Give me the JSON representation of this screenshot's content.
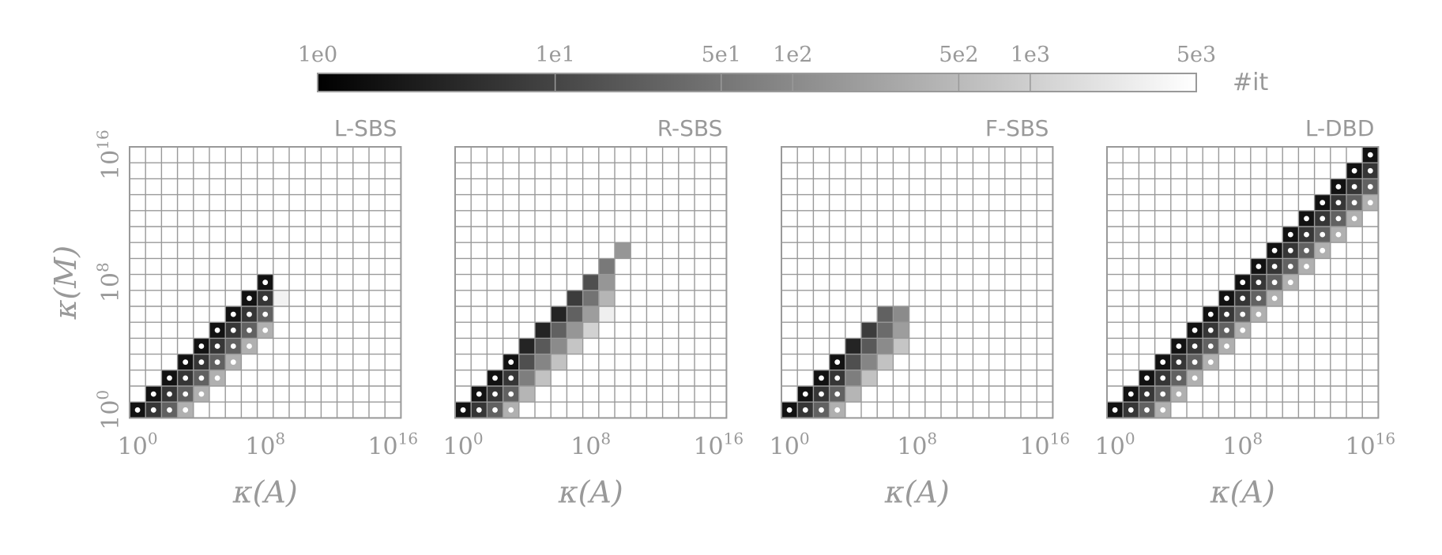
{
  "colorbar": {
    "label": "#it",
    "ticks": [
      "1e0",
      "1e1",
      "5e1",
      "1e2",
      "5e2",
      "1e3",
      "5e3"
    ]
  },
  "chart_data": [
    {
      "type": "heatmap",
      "title": "L-SBS",
      "xlabel": "κ(A)",
      "ylabel": "κ(M)",
      "xticks": [
        "10^0",
        "10^8",
        "10^16"
      ],
      "yticks": [
        "10^0",
        "10^8",
        "10^16"
      ],
      "grid": true,
      "cells": [
        {
          "x": 0,
          "y": 0,
          "it": 1,
          "dot": true
        },
        {
          "x": 1,
          "y": 0,
          "it": 4,
          "dot": true
        },
        {
          "x": 2,
          "y": 0,
          "it": 20,
          "dot": true
        },
        {
          "x": 3,
          "y": 0,
          "it": 400,
          "dot": true
        },
        {
          "x": 1,
          "y": 1,
          "it": 1,
          "dot": true
        },
        {
          "x": 2,
          "y": 1,
          "it": 4,
          "dot": true
        },
        {
          "x": 3,
          "y": 1,
          "it": 20,
          "dot": true
        },
        {
          "x": 4,
          "y": 1,
          "it": 400,
          "dot": true
        },
        {
          "x": 2,
          "y": 2,
          "it": 1,
          "dot": true
        },
        {
          "x": 3,
          "y": 2,
          "it": 4,
          "dot": true
        },
        {
          "x": 4,
          "y": 2,
          "it": 20,
          "dot": true
        },
        {
          "x": 5,
          "y": 2,
          "it": 400,
          "dot": true
        },
        {
          "x": 3,
          "y": 3,
          "it": 1,
          "dot": true
        },
        {
          "x": 4,
          "y": 3,
          "it": 4,
          "dot": true
        },
        {
          "x": 5,
          "y": 3,
          "it": 20,
          "dot": true
        },
        {
          "x": 6,
          "y": 3,
          "it": 400,
          "dot": true
        },
        {
          "x": 4,
          "y": 4,
          "it": 1,
          "dot": true
        },
        {
          "x": 5,
          "y": 4,
          "it": 4,
          "dot": true
        },
        {
          "x": 6,
          "y": 4,
          "it": 20,
          "dot": true
        },
        {
          "x": 7,
          "y": 4,
          "it": 400,
          "dot": true
        },
        {
          "x": 5,
          "y": 5,
          "it": 1,
          "dot": true
        },
        {
          "x": 6,
          "y": 5,
          "it": 4,
          "dot": true
        },
        {
          "x": 7,
          "y": 5,
          "it": 20,
          "dot": true
        },
        {
          "x": 8,
          "y": 5,
          "it": 400,
          "dot": true
        },
        {
          "x": 6,
          "y": 6,
          "it": 1,
          "dot": true
        },
        {
          "x": 7,
          "y": 6,
          "it": 4,
          "dot": true
        },
        {
          "x": 8,
          "y": 6,
          "it": 20,
          "dot": true
        },
        {
          "x": 7,
          "y": 7,
          "it": 1,
          "dot": true
        },
        {
          "x": 8,
          "y": 7,
          "it": 4,
          "dot": true
        },
        {
          "x": 9,
          "y": 7,
          "it": 5000,
          "dot": false
        },
        {
          "x": 8,
          "y": 8,
          "it": 1,
          "dot": true
        }
      ]
    },
    {
      "type": "heatmap",
      "title": "R-SBS",
      "xlabel": "κ(A)",
      "ylabel": "",
      "xticks": [
        "10^0",
        "10^8",
        "10^16"
      ],
      "yticks": [],
      "grid": true,
      "cells": [
        {
          "x": 0,
          "y": 0,
          "it": 1,
          "dot": true
        },
        {
          "x": 1,
          "y": 0,
          "it": 4,
          "dot": true
        },
        {
          "x": 2,
          "y": 0,
          "it": 20,
          "dot": true
        },
        {
          "x": 3,
          "y": 0,
          "it": 400,
          "dot": true
        },
        {
          "x": 1,
          "y": 1,
          "it": 1,
          "dot": true
        },
        {
          "x": 2,
          "y": 1,
          "it": 4,
          "dot": true
        },
        {
          "x": 3,
          "y": 1,
          "it": 20,
          "dot": true
        },
        {
          "x": 4,
          "y": 1,
          "it": 500,
          "dot": false
        },
        {
          "x": 2,
          "y": 2,
          "it": 1,
          "dot": true
        },
        {
          "x": 3,
          "y": 2,
          "it": 4,
          "dot": true
        },
        {
          "x": 4,
          "y": 2,
          "it": 60,
          "dot": false
        },
        {
          "x": 5,
          "y": 2,
          "it": 800,
          "dot": false
        },
        {
          "x": 3,
          "y": 3,
          "it": 1,
          "dot": true
        },
        {
          "x": 4,
          "y": 3,
          "it": 10,
          "dot": false
        },
        {
          "x": 5,
          "y": 3,
          "it": 80,
          "dot": false
        },
        {
          "x": 6,
          "y": 3,
          "it": 800,
          "dot": false
        },
        {
          "x": 4,
          "y": 4,
          "it": 2,
          "dot": false
        },
        {
          "x": 5,
          "y": 4,
          "it": 15,
          "dot": false
        },
        {
          "x": 6,
          "y": 4,
          "it": 100,
          "dot": false
        },
        {
          "x": 7,
          "y": 4,
          "it": 900,
          "dot": false
        },
        {
          "x": 5,
          "y": 5,
          "it": 2,
          "dot": false
        },
        {
          "x": 6,
          "y": 5,
          "it": 20,
          "dot": false
        },
        {
          "x": 7,
          "y": 5,
          "it": 150,
          "dot": false
        },
        {
          "x": 8,
          "y": 5,
          "it": 1500,
          "dot": false
        },
        {
          "x": 6,
          "y": 6,
          "it": 2,
          "dot": false
        },
        {
          "x": 7,
          "y": 6,
          "it": 20,
          "dot": false
        },
        {
          "x": 8,
          "y": 6,
          "it": 200,
          "dot": false
        },
        {
          "x": 9,
          "y": 6,
          "it": 4500,
          "dot": false
        },
        {
          "x": 7,
          "y": 7,
          "it": 5,
          "dot": false
        },
        {
          "x": 8,
          "y": 7,
          "it": 40,
          "dot": false
        },
        {
          "x": 9,
          "y": 7,
          "it": 500,
          "dot": false
        },
        {
          "x": 8,
          "y": 8,
          "it": 10,
          "dot": false
        },
        {
          "x": 9,
          "y": 8,
          "it": 150,
          "dot": false
        },
        {
          "x": 9,
          "y": 9,
          "it": 50,
          "dot": false
        },
        {
          "x": 10,
          "y": 10,
          "it": 150,
          "dot": false
        }
      ]
    },
    {
      "type": "heatmap",
      "title": "F-SBS",
      "xlabel": "κ(A)",
      "ylabel": "",
      "xticks": [
        "10^0",
        "10^8",
        "10^16"
      ],
      "yticks": [],
      "grid": true,
      "cells": [
        {
          "x": 0,
          "y": 0,
          "it": 1,
          "dot": true
        },
        {
          "x": 1,
          "y": 0,
          "it": 4,
          "dot": true
        },
        {
          "x": 2,
          "y": 0,
          "it": 20,
          "dot": true
        },
        {
          "x": 3,
          "y": 0,
          "it": 400,
          "dot": true
        },
        {
          "x": 1,
          "y": 1,
          "it": 1,
          "dot": true
        },
        {
          "x": 2,
          "y": 1,
          "it": 4,
          "dot": true
        },
        {
          "x": 3,
          "y": 1,
          "it": 20,
          "dot": true
        },
        {
          "x": 4,
          "y": 1,
          "it": 500,
          "dot": false
        },
        {
          "x": 2,
          "y": 2,
          "it": 1,
          "dot": true
        },
        {
          "x": 3,
          "y": 2,
          "it": 4,
          "dot": true
        },
        {
          "x": 4,
          "y": 2,
          "it": 60,
          "dot": false
        },
        {
          "x": 5,
          "y": 2,
          "it": 800,
          "dot": false
        },
        {
          "x": 3,
          "y": 3,
          "it": 1,
          "dot": true
        },
        {
          "x": 4,
          "y": 3,
          "it": 10,
          "dot": false
        },
        {
          "x": 5,
          "y": 3,
          "it": 80,
          "dot": false
        },
        {
          "x": 6,
          "y": 3,
          "it": 800,
          "dot": false
        },
        {
          "x": 4,
          "y": 4,
          "it": 2,
          "dot": false
        },
        {
          "x": 5,
          "y": 4,
          "it": 15,
          "dot": false
        },
        {
          "x": 6,
          "y": 4,
          "it": 100,
          "dot": false
        },
        {
          "x": 7,
          "y": 4,
          "it": 900,
          "dot": false
        },
        {
          "x": 5,
          "y": 5,
          "it": 5,
          "dot": false
        },
        {
          "x": 6,
          "y": 5,
          "it": 30,
          "dot": false
        },
        {
          "x": 7,
          "y": 5,
          "it": 200,
          "dot": false
        },
        {
          "x": 6,
          "y": 6,
          "it": 20,
          "dot": false
        },
        {
          "x": 7,
          "y": 6,
          "it": 100,
          "dot": false
        }
      ]
    },
    {
      "type": "heatmap",
      "title": "L-DBD",
      "xlabel": "κ(A)",
      "ylabel": "",
      "xticks": [
        "10^0",
        "10^8",
        "10^16"
      ],
      "yticks": [],
      "grid": true,
      "cells": [
        {
          "x": 0,
          "y": 0,
          "it": 1,
          "dot": true
        },
        {
          "x": 1,
          "y": 0,
          "it": 4,
          "dot": true
        },
        {
          "x": 2,
          "y": 0,
          "it": 20,
          "dot": true
        },
        {
          "x": 3,
          "y": 0,
          "it": 400,
          "dot": true
        },
        {
          "x": 1,
          "y": 1,
          "it": 1,
          "dot": true
        },
        {
          "x": 2,
          "y": 1,
          "it": 4,
          "dot": true
        },
        {
          "x": 3,
          "y": 1,
          "it": 20,
          "dot": true
        },
        {
          "x": 4,
          "y": 1,
          "it": 400,
          "dot": true
        },
        {
          "x": 2,
          "y": 2,
          "it": 1,
          "dot": true
        },
        {
          "x": 3,
          "y": 2,
          "it": 4,
          "dot": true
        },
        {
          "x": 4,
          "y": 2,
          "it": 20,
          "dot": true
        },
        {
          "x": 5,
          "y": 2,
          "it": 400,
          "dot": true
        },
        {
          "x": 3,
          "y": 3,
          "it": 1,
          "dot": true
        },
        {
          "x": 4,
          "y": 3,
          "it": 4,
          "dot": true
        },
        {
          "x": 5,
          "y": 3,
          "it": 20,
          "dot": true
        },
        {
          "x": 6,
          "y": 3,
          "it": 400,
          "dot": true
        },
        {
          "x": 4,
          "y": 4,
          "it": 1,
          "dot": true
        },
        {
          "x": 5,
          "y": 4,
          "it": 4,
          "dot": true
        },
        {
          "x": 6,
          "y": 4,
          "it": 20,
          "dot": true
        },
        {
          "x": 7,
          "y": 4,
          "it": 400,
          "dot": true
        },
        {
          "x": 5,
          "y": 5,
          "it": 1,
          "dot": true
        },
        {
          "x": 6,
          "y": 5,
          "it": 4,
          "dot": true
        },
        {
          "x": 7,
          "y": 5,
          "it": 20,
          "dot": true
        },
        {
          "x": 8,
          "y": 5,
          "it": 400,
          "dot": true
        },
        {
          "x": 6,
          "y": 6,
          "it": 1,
          "dot": true
        },
        {
          "x": 7,
          "y": 6,
          "it": 4,
          "dot": true
        },
        {
          "x": 8,
          "y": 6,
          "it": 20,
          "dot": true
        },
        {
          "x": 9,
          "y": 6,
          "it": 400,
          "dot": true
        },
        {
          "x": 7,
          "y": 7,
          "it": 1,
          "dot": true
        },
        {
          "x": 8,
          "y": 7,
          "it": 4,
          "dot": true
        },
        {
          "x": 9,
          "y": 7,
          "it": 20,
          "dot": true
        },
        {
          "x": 10,
          "y": 7,
          "it": 400,
          "dot": true
        },
        {
          "x": 8,
          "y": 8,
          "it": 1,
          "dot": true
        },
        {
          "x": 9,
          "y": 8,
          "it": 4,
          "dot": true
        },
        {
          "x": 10,
          "y": 8,
          "it": 20,
          "dot": true
        },
        {
          "x": 11,
          "y": 8,
          "it": 400,
          "dot": true
        },
        {
          "x": 9,
          "y": 9,
          "it": 1,
          "dot": true
        },
        {
          "x": 10,
          "y": 9,
          "it": 4,
          "dot": true
        },
        {
          "x": 11,
          "y": 9,
          "it": 20,
          "dot": true
        },
        {
          "x": 12,
          "y": 9,
          "it": 400,
          "dot": true
        },
        {
          "x": 10,
          "y": 10,
          "it": 1,
          "dot": true
        },
        {
          "x": 11,
          "y": 10,
          "it": 4,
          "dot": true
        },
        {
          "x": 12,
          "y": 10,
          "it": 20,
          "dot": true
        },
        {
          "x": 13,
          "y": 10,
          "it": 400,
          "dot": true
        },
        {
          "x": 11,
          "y": 11,
          "it": 1,
          "dot": true
        },
        {
          "x": 12,
          "y": 11,
          "it": 4,
          "dot": true
        },
        {
          "x": 13,
          "y": 11,
          "it": 20,
          "dot": true
        },
        {
          "x": 14,
          "y": 11,
          "it": 400,
          "dot": true
        },
        {
          "x": 12,
          "y": 12,
          "it": 1,
          "dot": true
        },
        {
          "x": 13,
          "y": 12,
          "it": 4,
          "dot": true
        },
        {
          "x": 14,
          "y": 12,
          "it": 20,
          "dot": true
        },
        {
          "x": 15,
          "y": 12,
          "it": 400,
          "dot": true
        },
        {
          "x": 13,
          "y": 13,
          "it": 1,
          "dot": true
        },
        {
          "x": 14,
          "y": 13,
          "it": 4,
          "dot": true
        },
        {
          "x": 15,
          "y": 13,
          "it": 20,
          "dot": true
        },
        {
          "x": 16,
          "y": 13,
          "it": 400,
          "dot": true
        },
        {
          "x": 14,
          "y": 14,
          "it": 1,
          "dot": true
        },
        {
          "x": 15,
          "y": 14,
          "it": 4,
          "dot": true
        },
        {
          "x": 16,
          "y": 14,
          "it": 20,
          "dot": true
        },
        {
          "x": 15,
          "y": 15,
          "it": 1,
          "dot": true
        },
        {
          "x": 16,
          "y": 15,
          "it": 4,
          "dot": true
        },
        {
          "x": 16,
          "y": 16,
          "it": 1,
          "dot": true
        }
      ]
    }
  ]
}
